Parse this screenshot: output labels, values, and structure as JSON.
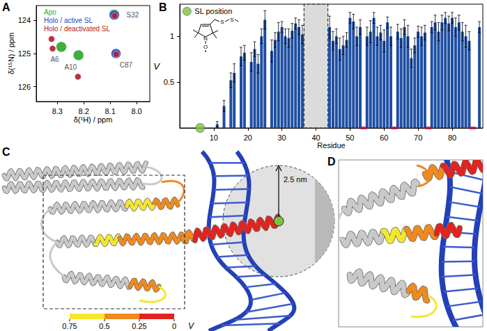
{
  "panel_labels": [
    "A",
    "B",
    "C",
    "D"
  ],
  "chart_data": [
    {
      "type": "scatter",
      "x_label": "δ(¹H) / ppm",
      "y_label": "δ(¹⁵N) / ppm",
      "xlim": [
        8.38,
        7.95
      ],
      "ylim": [
        126.45,
        123.55
      ],
      "xticks": [
        8.3,
        8.2,
        8.1,
        {
          "value": 8,
          "label": "8.0"
        }
      ],
      "yticks": [
        124,
        125,
        126
      ],
      "legend": "top-left",
      "series": [
        {
          "name": "Apo",
          "color": "#2fa82f",
          "x": [
            8.085,
            8.285,
            8.22
          ],
          "values": [
            123.82,
            124.8,
            125.05
          ]
        },
        {
          "name": "Holo / active SL",
          "color": "#2346c4",
          "x": [
            8.084,
            8.078
          ],
          "values": [
            123.84,
            125.0
          ]
        },
        {
          "name": "Holo / deactivated SL",
          "color": "#b3202a",
          "x": [
            8.083,
            8.322,
            8.318,
            8.222,
            8.077
          ],
          "values": [
            123.86,
            124.56,
            124.85,
            125.7,
            125.02
          ]
        }
      ],
      "annotations": [
        {
          "text": "S32",
          "x": 8.015,
          "y": 123.84
        },
        {
          "text": "A6",
          "x": 8.31,
          "y": 125.18
        },
        {
          "text": "A10",
          "x": 8.25,
          "y": 125.4
        },
        {
          "text": "C87",
          "x": 8.04,
          "y": 125.35
        }
      ]
    },
    {
      "type": "bar",
      "x_label": "Residue",
      "y_label": "V",
      "xlim": [
        0,
        89
      ],
      "ylim": [
        0,
        1.35
      ],
      "xticks": [
        10,
        20,
        30,
        40,
        50,
        60,
        70,
        80
      ],
      "yticks": [
        0.5,
        1
      ],
      "color": "#1f4fa3",
      "legend": "top-left",
      "x": [
        11,
        13,
        15,
        16,
        18,
        19,
        21,
        22,
        23,
        24,
        25,
        27,
        28,
        29,
        30,
        31,
        32,
        33,
        34,
        35,
        36,
        44,
        45,
        46,
        47,
        48,
        49,
        50,
        51,
        52,
        53,
        55,
        56,
        57,
        58,
        59,
        60,
        61,
        62,
        64,
        65,
        66,
        67,
        68,
        69,
        70,
        71,
        72,
        74,
        75,
        76,
        77,
        78,
        79,
        80,
        81,
        82,
        83,
        84,
        85,
        88
      ],
      "values": [
        0.04,
        0.24,
        0.52,
        0.6,
        0.78,
        0.82,
        0.72,
        0.86,
        0.7,
        1.0,
        1.18,
        0.84,
        0.96,
        1.05,
        1.1,
        1.0,
        0.98,
        1.06,
        1.14,
        1.1,
        1.02,
        1.1,
        0.95,
        1.0,
        0.86,
        0.9,
        0.96,
        1.2,
        1.16,
        1.0,
        1.1,
        1.0,
        1.05,
        1.2,
        1.0,
        1.04,
        0.95,
        1.15,
        1.0,
        1.05,
        0.98,
        1.1,
        1.0,
        0.76,
        0.9,
        1.05,
        1.0,
        1.04,
        1.1,
        1.15,
        1.05,
        1.15,
        1.2,
        1.14,
        1.2,
        1.1,
        1.15,
        1.05,
        1.0,
        0.95,
        1.1
      ],
      "errors": [
        0.03,
        0.06,
        0.08,
        0.1,
        0.1,
        0.08,
        0.1,
        0.08,
        0.1,
        0.08,
        0.1,
        0.12,
        0.08,
        0.1,
        0.06,
        0.08,
        0.1,
        0.08,
        0.06,
        0.08,
        0.1,
        0.12,
        0.1,
        0.08,
        0.12,
        0.1,
        0.08,
        0.06,
        0.08,
        0.1,
        0.08,
        0.1,
        0.12,
        0.06,
        0.1,
        0.08,
        0.12,
        0.06,
        0.1,
        0.08,
        0.1,
        0.08,
        0.12,
        0.1,
        0.08,
        0.06,
        0.1,
        0.08,
        0.06,
        0.08,
        0.1,
        0.08,
        0.06,
        0.08,
        0.06,
        0.1,
        0.08,
        0.1,
        0.12,
        0.1,
        0.06
      ],
      "sl_position": {
        "name": "SL position",
        "x": 6,
        "y": 0,
        "color": "#7dc242"
      },
      "shaded_range": [
        36.5,
        43.5
      ],
      "red_marks": {
        "color": "#c8102e",
        "x": [
          54,
          63,
          73,
          86
        ],
        "values": [
          0,
          0,
          0,
          0
        ]
      },
      "spin_label": {
        "atoms": [
          "N",
          "O",
          "S",
          "S"
        ]
      }
    }
  ],
  "structure": {
    "distance_label": "2.5 nm",
    "colorbar": {
      "label": "V",
      "range": [
        0.75,
        0
      ],
      "ticks": [
        0.75,
        0.5,
        0.25,
        0
      ],
      "bands": [
        {
          "from": 0.75,
          "to": 0.5,
          "color": "#f5e72b"
        },
        {
          "from": 0.5,
          "to": 0.25,
          "color": "#f08a1d"
        },
        {
          "from": 0.25,
          "to": 0,
          "color": "#e3231f"
        }
      ]
    }
  }
}
